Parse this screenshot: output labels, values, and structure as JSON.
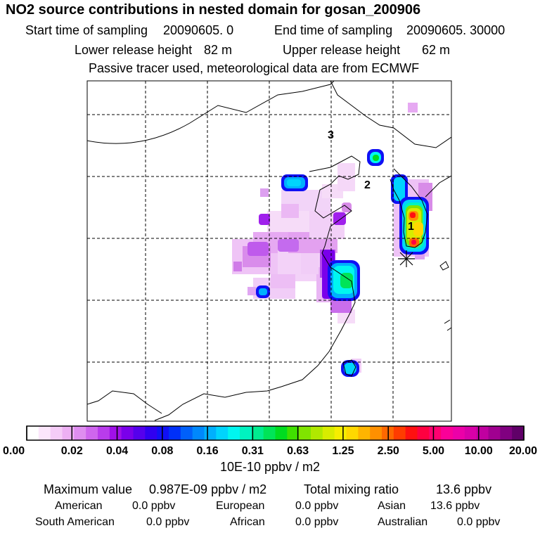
{
  "title": "NO2 source contributions in nested domain for gosan_200906",
  "sampling": {
    "start_label": "Start time of sampling",
    "start_value": "20090605.     0",
    "end_label": "End time of sampling",
    "end_value": "20090605. 30000"
  },
  "release": {
    "lower_label": "Lower release height",
    "lower_value": "82 m",
    "upper_label": "Upper release height",
    "upper_value": "62 m"
  },
  "note": "Passive tracer used, meteorological data are from ECMWF",
  "map": {
    "labels": [
      "1",
      "2",
      "3"
    ],
    "receptor_marker": "asterisk"
  },
  "colorbar": {
    "ticks": [
      "0.00",
      "0.02",
      "0.04",
      "0.08",
      "0.16",
      "0.31",
      "0.63",
      "1.25",
      "2.50",
      "5.00",
      "10.00",
      "20.00"
    ],
    "colors": [
      "#ffffff",
      "#fbe6fb",
      "#f5ccf7",
      "#edb0f3",
      "#df8ef0",
      "#cf66ee",
      "#b93cec",
      "#a010e8",
      "#7a00ea",
      "#5500ec",
      "#3000f0",
      "#1010f5",
      "#0030f8",
      "#0060fa",
      "#0088fc",
      "#00b0fd",
      "#00d4fd",
      "#00f6f0",
      "#00f2c0",
      "#00ec90",
      "#00e458",
      "#00dc20",
      "#40e000",
      "#80e400",
      "#b0e800",
      "#d8ec00",
      "#f6ee00",
      "#ffd800",
      "#ffb400",
      "#ff9000",
      "#ff6800",
      "#ff3c00",
      "#ff1010",
      "#ff0040",
      "#ff0070",
      "#fa0098",
      "#ec00a8",
      "#d800a8",
      "#c000a0",
      "#a00090",
      "#800080",
      "#600068"
    ],
    "unit": "10E-10 ppbv / m2"
  },
  "stats": {
    "max_label": "Maximum value",
    "max_value": "0.987E-09 ppbv / m2",
    "total_label": "Total mixing ratio",
    "total_value": "13.6 ppbv"
  },
  "regions": [
    {
      "name": "American",
      "value": "0.0 ppbv"
    },
    {
      "name": "European",
      "value": "0.0 ppbv"
    },
    {
      "name": "Asian",
      "value": "13.6 ppbv"
    },
    {
      "name": "South American",
      "value": "0.0 ppbv"
    },
    {
      "name": "African",
      "value": "0.0 ppbv"
    },
    {
      "name": "Australian",
      "value": "0.0 ppbv"
    }
  ]
}
